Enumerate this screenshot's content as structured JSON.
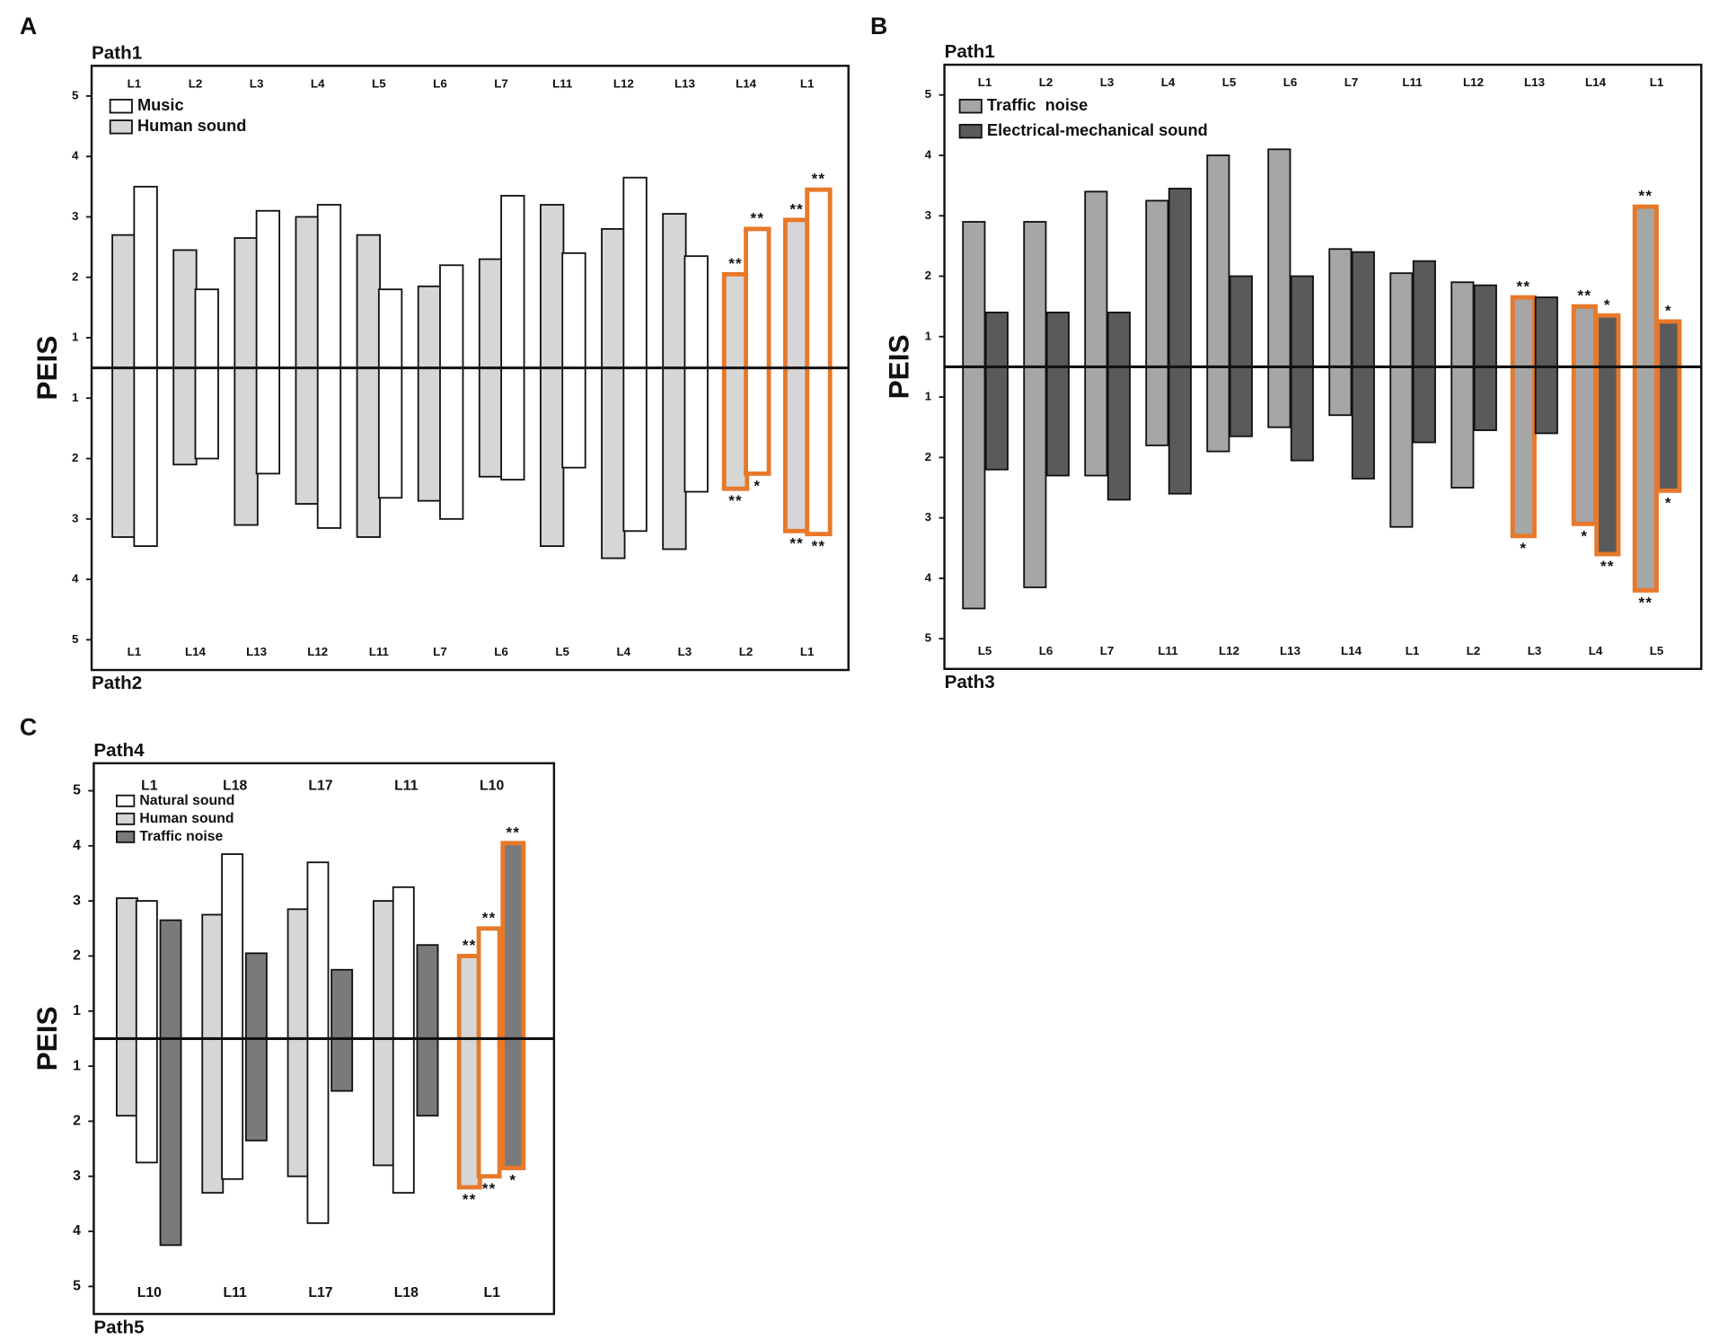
{
  "chart_data": [
    {
      "type": "bar",
      "label": "A",
      "y_label": "PEIS",
      "top_path": "Path1",
      "bottom_path": "Path2",
      "categories": [
        "L1",
        "L2",
        "L3",
        "L4",
        "L5",
        "L6",
        "L7",
        "L11",
        "L12",
        "L13",
        "L14",
        "L1"
      ],
      "categories_bottom": [
        "L1",
        "L14",
        "L13",
        "L12",
        "L11",
        "L7",
        "L6",
        "L5",
        "L4",
        "L3",
        "L2",
        "L1"
      ],
      "ylim": [
        -5.5,
        5.5
      ],
      "yticks": [
        5,
        4,
        3,
        2,
        1,
        {
          "value": -1,
          "label": "1"
        },
        {
          "value": -2,
          "label": "2"
        },
        {
          "value": -3,
          "label": "3"
        },
        {
          "value": -4,
          "label": "4"
        },
        {
          "value": -5,
          "label": "5"
        }
      ],
      "series": [
        {
          "name": "Music",
          "color": "#ffffff",
          "values": [
            3.5,
            1.8,
            3.1,
            3.2,
            1.8,
            2.2,
            3.35,
            2.4,
            3.65,
            2.35,
            2.8,
            3.45
          ],
          "lower": [
            -3.45,
            -2.0,
            -2.25,
            -3.15,
            -2.65,
            -3.0,
            -2.35,
            -2.15,
            -3.2,
            -2.55,
            -2.25,
            -3.25
          ],
          "top_labels": [
            null,
            null,
            null,
            null,
            null,
            null,
            null,
            null,
            null,
            null,
            "**",
            "**"
          ],
          "bottom_labels": [
            null,
            null,
            null,
            null,
            null,
            null,
            null,
            null,
            null,
            null,
            "*",
            "**"
          ]
        },
        {
          "name": "Human sound",
          "color": "#d6d6d6",
          "values": [
            2.7,
            2.45,
            2.65,
            3.0,
            2.7,
            1.85,
            2.3,
            3.2,
            2.8,
            3.05,
            2.05,
            2.95
          ],
          "lower": [
            -3.3,
            -2.1,
            -3.1,
            -2.75,
            -3.3,
            -2.7,
            -2.3,
            -3.45,
            -3.65,
            -3.5,
            -2.5,
            -3.2
          ],
          "top_labels": [
            null,
            null,
            null,
            null,
            null,
            null,
            null,
            null,
            null,
            null,
            "**",
            "**"
          ],
          "bottom_labels": [
            null,
            null,
            null,
            null,
            null,
            null,
            null,
            null,
            null,
            null,
            "**",
            "**"
          ]
        }
      ]
    },
    {
      "type": "bar",
      "label": "B",
      "y_label": "PEIS",
      "top_path": "Path1",
      "bottom_path": "Path3",
      "categories": [
        "L1",
        "L2",
        "L3",
        "L4",
        "L5",
        "L6",
        "L7",
        "L11",
        "L12",
        "L13",
        "L14",
        "L1"
      ],
      "categories_bottom": [
        "L5",
        "L6",
        "L7",
        "L11",
        "L12",
        "L13",
        "L14",
        "L1",
        "L2",
        "L3",
        "L4",
        "L5"
      ],
      "ylim": [
        -5.5,
        5.5
      ],
      "yticks": [
        5,
        4,
        3,
        2,
        1,
        {
          "value": -1,
          "label": "1"
        },
        {
          "value": -2,
          "label": "2"
        },
        {
          "value": -3,
          "label": "3"
        },
        {
          "value": -4,
          "label": "4"
        },
        {
          "value": -5,
          "label": "5"
        }
      ],
      "series": [
        {
          "name": "Traffic  noise",
          "color": "#a6a6a6",
          "values": [
            2.9,
            2.9,
            3.4,
            3.25,
            4.0,
            4.1,
            2.45,
            2.05,
            1.9,
            1.65,
            1.5,
            3.15
          ],
          "lower": [
            -4.5,
            -4.15,
            -2.3,
            -1.8,
            -1.9,
            -1.5,
            -1.3,
            -3.15,
            -2.5,
            -3.3,
            -3.1,
            -4.2
          ],
          "top_labels": [
            null,
            null,
            null,
            null,
            null,
            null,
            null,
            null,
            null,
            "**",
            "**",
            "**"
          ],
          "bottom_labels": [
            null,
            null,
            null,
            null,
            null,
            null,
            null,
            null,
            null,
            "*",
            "*",
            "**"
          ]
        },
        {
          "name": "Electrical-mechanical sound",
          "color": "#5a5a5a",
          "values": [
            1.4,
            1.4,
            1.4,
            3.45,
            2.0,
            2.0,
            2.4,
            2.25,
            1.85,
            1.65,
            1.35,
            1.25
          ],
          "lower": [
            -2.2,
            -2.3,
            -2.7,
            -2.6,
            -1.65,
            -2.05,
            -2.35,
            -1.75,
            -1.55,
            -1.6,
            -3.6,
            -2.55
          ],
          "top_labels": [
            null,
            null,
            null,
            null,
            null,
            null,
            null,
            null,
            null,
            null,
            "*",
            "*"
          ],
          "bottom_labels": [
            null,
            null,
            null,
            null,
            null,
            null,
            null,
            null,
            null,
            null,
            "**",
            "*"
          ]
        }
      ]
    },
    {
      "type": "bar",
      "label": "C",
      "y_label": "PEIS",
      "top_path": "Path4",
      "bottom_path": "Path5",
      "categories": [
        "L1",
        "L18",
        "L17",
        "L11",
        "L10"
      ],
      "categories_bottom": [
        "L10",
        "L11",
        "L17",
        "L18",
        "L1"
      ],
      "ylim": [
        -5.5,
        5.5
      ],
      "yticks": [
        5,
        4,
        3,
        2,
        1,
        {
          "value": -1,
          "label": "1"
        },
        {
          "value": -2,
          "label": "2"
        },
        {
          "value": -3,
          "label": "3"
        },
        {
          "value": -4,
          "label": "4"
        },
        {
          "value": -5,
          "label": "5"
        }
      ],
      "series": [
        {
          "name": "Natural sound",
          "color": "#ffffff",
          "values": [
            3.0,
            3.85,
            3.7,
            3.25,
            2.5
          ],
          "lower": [
            -2.75,
            -3.05,
            -3.85,
            -3.3,
            -3.0
          ],
          "top_labels": [
            null,
            null,
            null,
            null,
            "**"
          ],
          "bottom_labels": [
            null,
            null,
            null,
            null,
            "**"
          ]
        },
        {
          "name": "Human sound",
          "color": "#d6d6d6",
          "values": [
            3.05,
            2.75,
            2.85,
            3.0,
            2.0
          ],
          "lower": [
            -1.9,
            -3.3,
            -3.0,
            -2.8,
            -3.2
          ],
          "top_labels": [
            null,
            null,
            null,
            null,
            "**"
          ],
          "bottom_labels": [
            null,
            null,
            null,
            null,
            "**"
          ]
        },
        {
          "name": "Traffic noise",
          "color": "#7a7a7a",
          "values": [
            2.65,
            2.05,
            1.75,
            2.2,
            4.05
          ],
          "lower": [
            -4.25,
            -2.35,
            -1.45,
            -1.9,
            -2.85
          ],
          "top_labels": [
            null,
            null,
            null,
            null,
            "**"
          ],
          "bottom_labels": [
            null,
            null,
            null,
            null,
            "*"
          ]
        }
      ]
    }
  ]
}
